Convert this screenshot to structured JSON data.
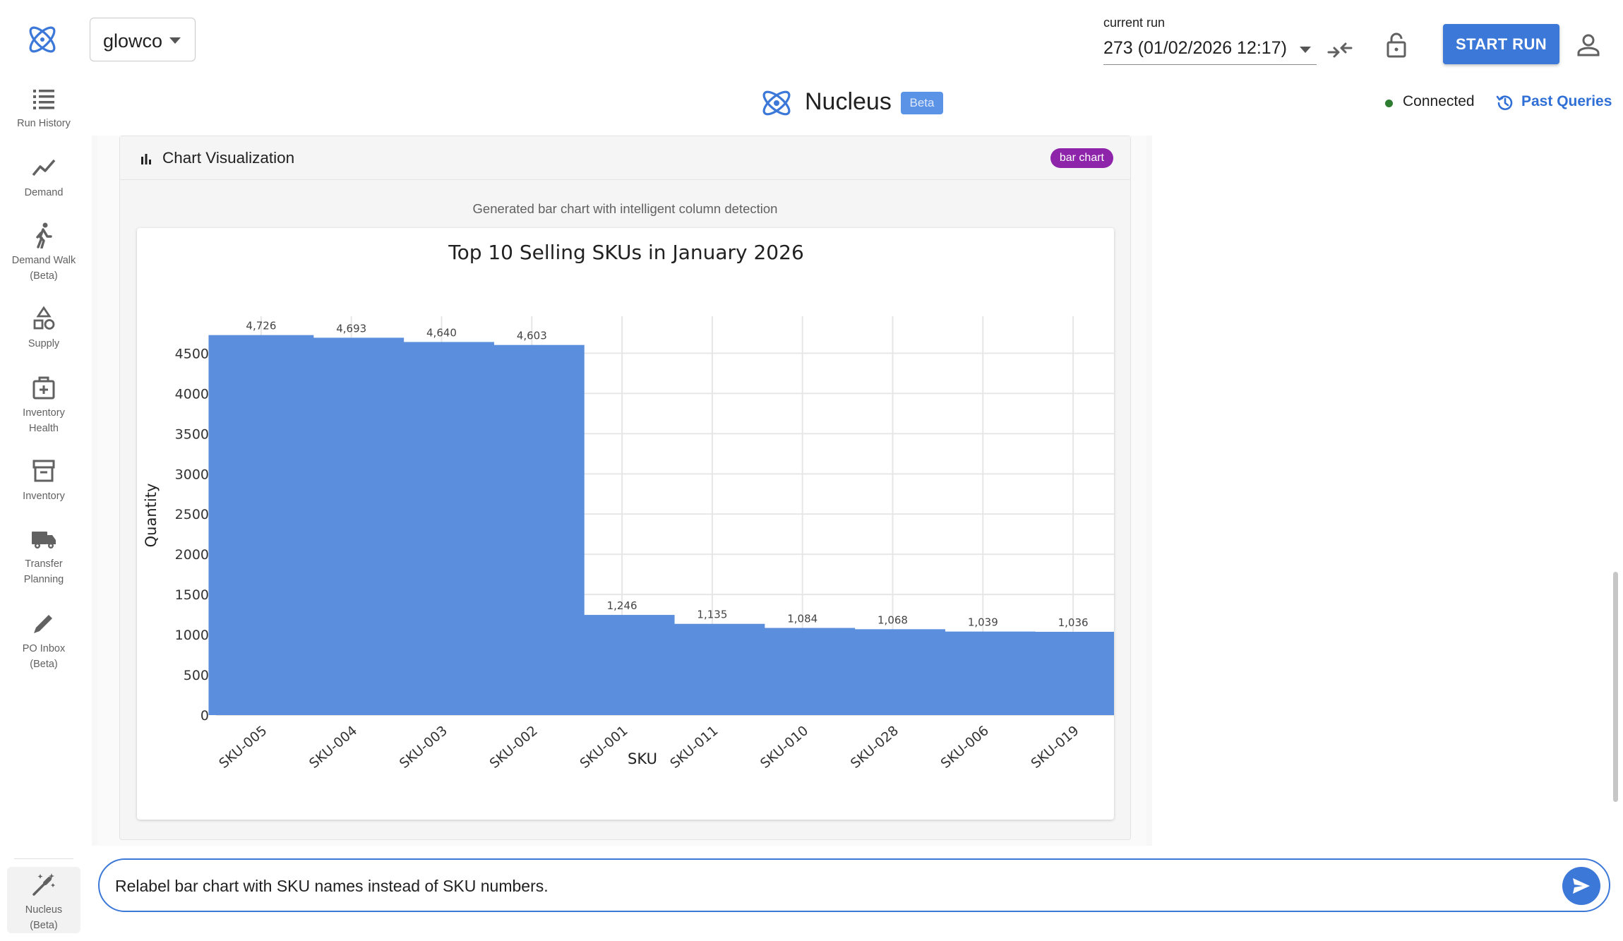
{
  "sidebar": {
    "logo_icon": "atom-logo-icon",
    "items": [
      {
        "label": "Run History",
        "icon": "list-icon"
      },
      {
        "label": "Demand",
        "icon": "trend-line-icon"
      },
      {
        "label": "Demand Walk (Beta)",
        "icon": "walking-person-icon"
      },
      {
        "label": "Supply",
        "icon": "shapes-icon"
      },
      {
        "label": "Inventory Health",
        "icon": "medical-kit-icon"
      },
      {
        "label": "Inventory",
        "icon": "archive-box-icon"
      },
      {
        "label": "Transfer Planning",
        "icon": "truck-icon"
      },
      {
        "label": "PO Inbox (Beta)",
        "icon": "pencil-icon"
      },
      {
        "label": "Nucleus (Beta)",
        "icon": "magic-wand-icon",
        "active": true
      }
    ]
  },
  "header": {
    "tenant": "glowco",
    "run_label": "current run",
    "run_value": "273 (01/02/2026 12:17)",
    "start_run_label": "START RUN"
  },
  "brand": {
    "name": "Nucleus",
    "badge": "Beta"
  },
  "status": {
    "connection": "Connected",
    "past_queries_label": "Past Queries"
  },
  "card": {
    "title": "Chart Visualization",
    "badge": "bar chart",
    "subtitle": "Generated bar chart with intelligent column detection"
  },
  "chart_data": {
    "type": "bar",
    "title": "Top 10 Selling SKUs in January 2026",
    "xlabel": "SKU",
    "ylabel": "Quantity",
    "categories": [
      "SKU-005",
      "SKU-004",
      "SKU-003",
      "SKU-002",
      "SKU-001",
      "SKU-011",
      "SKU-010",
      "SKU-028",
      "SKU-006",
      "SKU-019"
    ],
    "values": [
      4726,
      4693,
      4640,
      4603,
      1246,
      1135,
      1084,
      1068,
      1039,
      1036
    ],
    "value_labels": [
      "4,726",
      "4,693",
      "4,640",
      "4,603",
      "1,246",
      "1,135",
      "1,084",
      "1,068",
      "1,039",
      "1,036"
    ],
    "yticks": [
      0,
      500,
      1000,
      1500,
      2000,
      2500,
      3000,
      3500,
      4000,
      4500
    ],
    "ylim": [
      0,
      4960
    ],
    "bar_color": "#5b8fde",
    "grid": true
  },
  "prompt": {
    "value": "Relabel bar chart with SKU names instead of SKU numbers.",
    "send_icon": "send-icon"
  },
  "colors": {
    "accent": "#3c78d8",
    "badge_purple": "#8e24aa",
    "connected_green": "#2e7d32"
  }
}
